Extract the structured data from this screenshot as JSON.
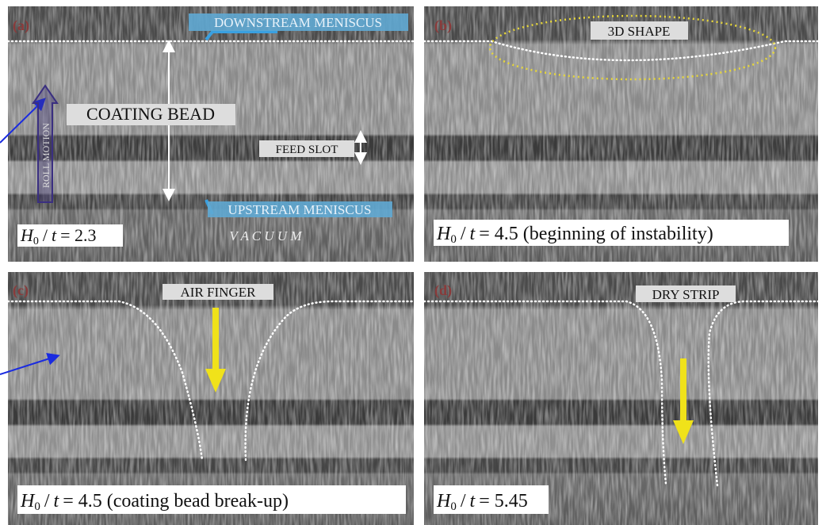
{
  "panels": [
    {
      "label": "(a)",
      "annotations": [
        "DOWNSTREAM MENISCUS",
        "COATING BEAD",
        "FEED SLOT",
        "ROLL MOTION",
        "UPSTREAM MENISCUS",
        "V A C U U M"
      ],
      "caption": {
        "symbol": "H",
        "subscript": "0",
        "slash": "/",
        "variable": "t",
        "value": "= 2.3"
      }
    },
    {
      "label": "(b)",
      "annotations": [
        "3D SHAPE"
      ],
      "caption": {
        "symbol": "H",
        "subscript": "0",
        "slash": "/",
        "variable": "t",
        "value": "= 4.5 (beginning of instability)"
      }
    },
    {
      "label": "(c)",
      "annotations": [
        "AIR FINGER"
      ],
      "caption": {
        "symbol": "H",
        "subscript": "0",
        "slash": "/",
        "variable": "t",
        "value": "= 4.5 (coating bead break-up)"
      }
    },
    {
      "label": "(d)",
      "annotations": [
        "DRY STRIP"
      ],
      "caption": {
        "symbol": "H",
        "subscript": "0",
        "slash": "/",
        "variable": "t",
        "value": "= 5.45"
      }
    }
  ]
}
